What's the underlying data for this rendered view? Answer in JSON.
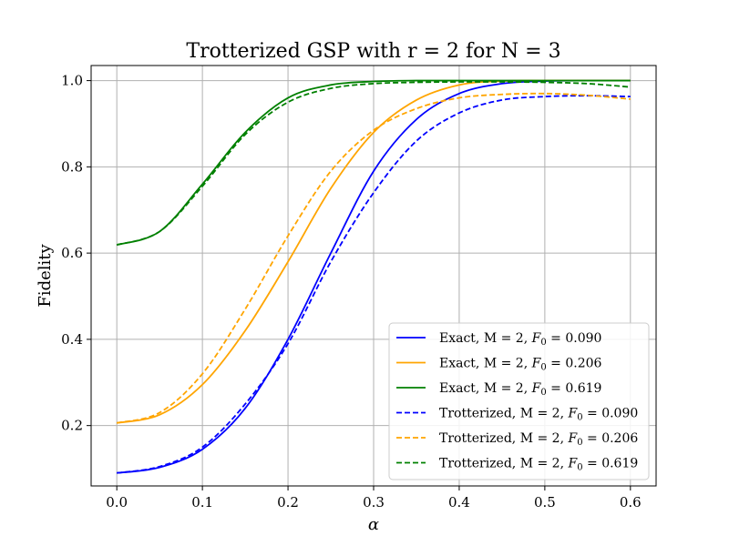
{
  "chart_data": {
    "type": "line",
    "title": "Trotterized GSP with r = 2 for N = 3",
    "xlabel": "α",
    "ylabel": "Fidelity",
    "xlim": [
      -0.03,
      0.63
    ],
    "ylim": [
      0.06,
      1.035
    ],
    "xticks": [
      0.0,
      0.1,
      0.2,
      0.3,
      0.4,
      0.5,
      0.6
    ],
    "xtick_labels": [
      "0.0",
      "0.1",
      "0.2",
      "0.3",
      "0.4",
      "0.5",
      "0.6"
    ],
    "yticks": [
      0.2,
      0.4,
      0.6,
      0.8,
      1.0
    ],
    "ytick_labels": [
      "0.2",
      "0.4",
      "0.6",
      "0.8",
      "1.0"
    ],
    "grid": true,
    "legend_position": "lower right",
    "x": [
      0.0,
      0.05,
      0.1,
      0.15,
      0.2,
      0.25,
      0.3,
      0.35,
      0.4,
      0.45,
      0.5,
      0.55,
      0.6
    ],
    "series": [
      {
        "name": "Exact, M = 2, F0 = 0.090",
        "color": "#0000ff",
        "dash": "solid",
        "values": [
          0.09,
          0.103,
          0.145,
          0.24,
          0.4,
          0.6,
          0.79,
          0.91,
          0.97,
          0.993,
          0.999,
          1.0,
          1.0
        ]
      },
      {
        "name": "Exact, M = 2, F0 = 0.206",
        "color": "#ffa500",
        "dash": "solid",
        "values": [
          0.206,
          0.225,
          0.295,
          0.42,
          0.58,
          0.75,
          0.88,
          0.955,
          0.99,
          0.999,
          1.0,
          1.0,
          1.0
        ]
      },
      {
        "name": "Exact, M = 2, F0 = 0.619",
        "color": "#008000",
        "dash": "solid",
        "values": [
          0.619,
          0.65,
          0.76,
          0.88,
          0.96,
          0.99,
          0.998,
          1.0,
          1.0,
          1.0,
          1.0,
          1.0,
          1.0
        ]
      },
      {
        "name": "Trotterized, M = 2, F0 = 0.090",
        "color": "#0000ff",
        "dash": "dashed",
        "values": [
          0.09,
          0.105,
          0.15,
          0.25,
          0.39,
          0.58,
          0.74,
          0.86,
          0.925,
          0.955,
          0.963,
          0.965,
          0.963
        ]
      },
      {
        "name": "Trotterized, M = 2, F0 = 0.206",
        "color": "#ffa500",
        "dash": "dashed",
        "values": [
          0.206,
          0.23,
          0.32,
          0.47,
          0.64,
          0.79,
          0.885,
          0.935,
          0.96,
          0.968,
          0.97,
          0.966,
          0.957
        ]
      },
      {
        "name": "Trotterized, M = 2, F0 = 0.619",
        "color": "#008000",
        "dash": "dashed",
        "values": [
          0.619,
          0.65,
          0.755,
          0.875,
          0.95,
          0.982,
          0.993,
          0.996,
          0.997,
          0.997,
          0.996,
          0.993,
          0.985
        ]
      }
    ],
    "legend": [
      {
        "prefix": "Exact, M =  2, ",
        "fvalue": "0.090",
        "color": "#0000ff",
        "dash": "solid"
      },
      {
        "prefix": "Exact, M =  2, ",
        "fvalue": "0.206",
        "color": "#ffa500",
        "dash": "solid"
      },
      {
        "prefix": "Exact, M =  2, ",
        "fvalue": "0.619",
        "color": "#008000",
        "dash": "solid"
      },
      {
        "prefix": "Trotterized, M = 2, ",
        "fvalue": " 0.090",
        "color": "#0000ff",
        "dash": "dashed"
      },
      {
        "prefix": "Trotterized, M = 2, ",
        "fvalue": " 0.206",
        "color": "#ffa500",
        "dash": "dashed"
      },
      {
        "prefix": "Trotterized, M = 2, ",
        "fvalue": " 0.619",
        "color": "#008000",
        "dash": "dashed"
      }
    ],
    "legend_symbol": "F",
    "legend_symbol_sub": "0"
  }
}
